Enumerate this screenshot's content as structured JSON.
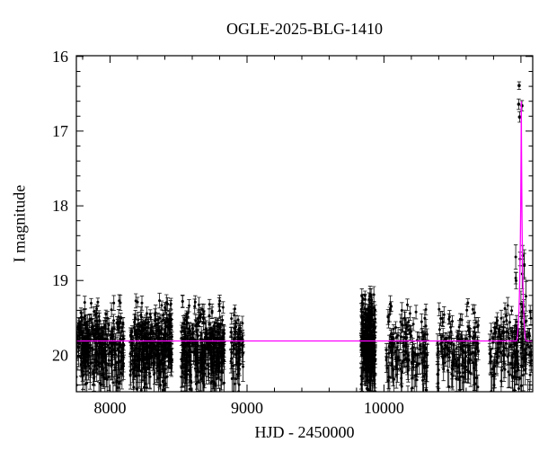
{
  "chart_data": {
    "type": "scatter",
    "title": "OGLE-2025-BLG-1410",
    "xlabel": "HJD - 2450000",
    "ylabel": "I magnitude",
    "xlim": [
      7754,
      11086
    ],
    "ylim": [
      20.49,
      15.99
    ],
    "y_axis_inverted_magnitude": true,
    "grid": false,
    "x_major_ticks": [
      8000,
      9000,
      10000,
      11000
    ],
    "x_tick_labels": [
      {
        "value": 8000,
        "label": "8000"
      },
      {
        "value": 9000,
        "label": "9000"
      },
      {
        "value": 10000,
        "label": "10000"
      }
    ],
    "x_minor_step": 200,
    "y_major_ticks": [
      {
        "value": 16,
        "label": "16"
      },
      {
        "value": 17,
        "label": "17"
      },
      {
        "value": 18,
        "label": "18"
      },
      {
        "value": 19,
        "label": "19"
      },
      {
        "value": 20,
        "label": "20"
      }
    ],
    "y_minor_step": 0.2,
    "colors": {
      "background": "#ffffff",
      "frame": "#000000",
      "data_points": "#000000",
      "error_bars": "#000000",
      "model_curve": "#ff00ff"
    },
    "model": {
      "description": "flat baseline with sharp microlensing spike",
      "baseline_mag": 19.81,
      "t0": 11003,
      "peak_mag": 16.6
    },
    "seasons": [
      {
        "hjd_start": 7754,
        "hjd_end": 8102,
        "n": 320,
        "mean_mag": 19.86,
        "sigma": 0.26
      },
      {
        "hjd_start": 8148,
        "hjd_end": 8456,
        "n": 320,
        "mean_mag": 19.86,
        "sigma": 0.26
      },
      {
        "hjd_start": 8521,
        "hjd_end": 8836,
        "n": 320,
        "mean_mag": 19.86,
        "sigma": 0.26
      },
      {
        "hjd_start": 8882,
        "hjd_end": 8974,
        "n": 62,
        "mean_mag": 19.88,
        "sigma": 0.24
      },
      {
        "hjd_start": 9833,
        "hjd_end": 9938,
        "n": 260,
        "mean_mag": 19.84,
        "sigma": 0.3
      },
      {
        "hjd_start": 10017,
        "hjd_end": 10318,
        "n": 150,
        "mean_mag": 19.93,
        "sigma": 0.27
      },
      {
        "hjd_start": 10390,
        "hjd_end": 10692,
        "n": 150,
        "mean_mag": 19.91,
        "sigma": 0.27
      },
      {
        "hjd_start": 10771,
        "hjd_end": 11079,
        "n": 155,
        "mean_mag": 19.91,
        "sigma": 0.26
      }
    ],
    "event_points": [
      {
        "hjd": 10987,
        "mag": 16.39,
        "err": 0.05
      },
      {
        "hjd": 10984,
        "mag": 16.64,
        "err": 0.07
      },
      {
        "hjd": 11007,
        "mag": 16.66,
        "err": 0.07
      },
      {
        "hjd": 10990,
        "mag": 16.81,
        "err": 0.07
      }
    ],
    "event_column": {
      "hjd_start": 10958,
      "hjd_end": 11042,
      "n": 26,
      "mag_min": 18.62,
      "mag_max": 20.32
    }
  }
}
